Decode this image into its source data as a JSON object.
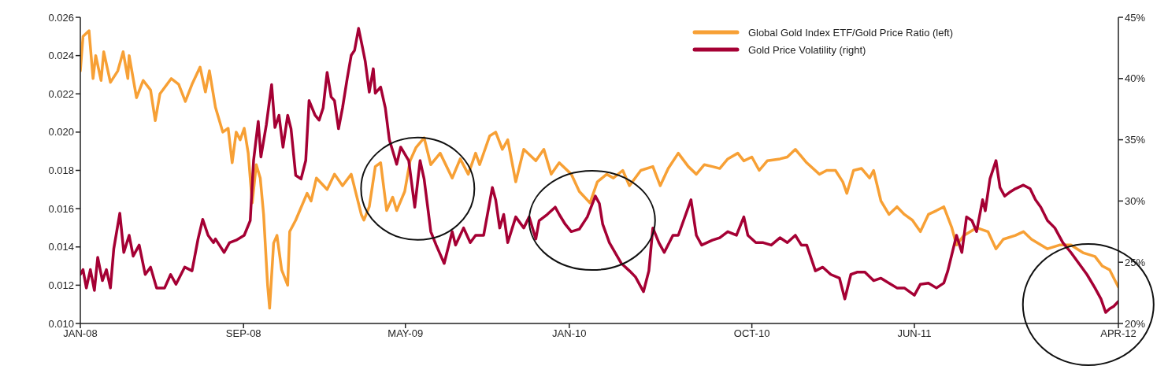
{
  "chart_data": {
    "type": "line",
    "xlim": [
      "2008-01-01",
      "2012-04-01"
    ],
    "xticks": [
      {
        "value": "2008-01-01",
        "label": "JAN-08"
      },
      {
        "value": "2008-09-01",
        "label": "SEP-08"
      },
      {
        "value": "2009-05-01",
        "label": "MAY-09"
      },
      {
        "value": "2010-01-01",
        "label": "JAN-10"
      },
      {
        "value": "2010-10-01",
        "label": "OCT-10"
      },
      {
        "value": "2011-06-01",
        "label": "JUN-11"
      },
      {
        "value": "2012-04-01",
        "label": "APR-12"
      }
    ],
    "ylim": [
      0.01,
      0.026
    ],
    "yticks": [
      {
        "value": 0.01,
        "label": "0.010"
      },
      {
        "value": 0.012,
        "label": "0.012"
      },
      {
        "value": 0.014,
        "label": "0.014"
      },
      {
        "value": 0.016,
        "label": "0.016"
      },
      {
        "value": 0.018,
        "label": "0.018"
      },
      {
        "value": 0.02,
        "label": "0.020"
      },
      {
        "value": 0.022,
        "label": "0.022"
      },
      {
        "value": 0.024,
        "label": "0.024"
      },
      {
        "value": 0.026,
        "label": "0.026"
      }
    ],
    "y2lim": [
      20,
      45
    ],
    "y2ticks": [
      {
        "value": 20,
        "label": "20%"
      },
      {
        "value": 25,
        "label": "25%"
      },
      {
        "value": 30,
        "label": "30%"
      },
      {
        "value": 35,
        "label": "35%"
      },
      {
        "value": 40,
        "label": "40%"
      },
      {
        "value": 45,
        "label": "45%"
      }
    ],
    "legend": "top right",
    "marker": "none",
    "line_style": "solid",
    "series": [
      {
        "name": "Global Gold Index ETF/Gold Price Ratio (left)",
        "color": "#f7a035",
        "x": [
          "2008-01-01",
          "2008-01-05",
          "2008-01-14",
          "2008-01-20",
          "2008-01-24",
          "2008-02-01",
          "2008-02-05",
          "2008-02-15",
          "2008-02-26",
          "2008-03-05",
          "2008-03-12",
          "2008-03-14",
          "2008-03-25",
          "2008-04-04",
          "2008-04-15",
          "2008-04-22",
          "2008-04-29",
          "2008-05-16",
          "2008-05-27",
          "2008-06-06",
          "2008-06-16",
          "2008-06-28",
          "2008-07-06",
          "2008-07-12",
          "2008-07-21",
          "2008-08-01",
          "2008-08-09",
          "2008-08-15",
          "2008-08-21",
          "2008-08-27",
          "2008-09-02",
          "2008-09-08",
          "2008-09-14",
          "2008-09-20",
          "2008-09-26",
          "2008-10-01",
          "2008-10-07",
          "2008-10-10",
          "2008-10-16",
          "2008-10-21",
          "2008-10-28",
          "2008-11-06",
          "2008-11-09",
          "2008-11-18",
          "2008-12-05",
          "2008-12-11",
          "2008-12-19",
          "2009-01-04",
          "2009-01-15",
          "2009-01-27",
          "2009-02-09",
          "2009-02-24",
          "2009-02-28",
          "2009-03-08",
          "2009-03-17",
          "2009-03-25",
          "2009-04-03",
          "2009-04-12",
          "2009-04-18",
          "2009-04-30",
          "2009-05-08",
          "2009-05-17",
          "2009-05-29",
          "2009-06-08",
          "2009-06-22",
          "2009-07-10",
          "2009-07-22",
          "2009-08-03",
          "2009-08-14",
          "2009-08-20",
          "2009-09-04",
          "2009-09-13",
          "2009-09-23",
          "2009-10-01",
          "2009-10-13",
          "2009-10-25",
          "2009-11-12",
          "2009-11-24",
          "2009-12-05",
          "2009-12-17",
          "2010-01-04",
          "2010-01-16",
          "2010-02-01",
          "2010-02-12",
          "2010-02-26",
          "2010-03-08",
          "2010-03-22",
          "2010-04-01",
          "2010-04-18",
          "2010-05-06",
          "2010-05-17",
          "2010-05-29",
          "2010-06-13",
          "2010-06-28",
          "2010-07-10",
          "2010-07-22",
          "2010-08-03",
          "2010-08-14",
          "2010-08-26",
          "2010-09-10",
          "2010-09-19",
          "2010-10-01",
          "2010-10-12",
          "2010-10-24",
          "2010-11-12",
          "2010-11-23",
          "2010-12-05",
          "2010-12-22",
          "2011-01-10",
          "2011-01-21",
          "2011-02-03",
          "2011-02-14",
          "2011-02-20",
          "2011-03-02",
          "2011-03-14",
          "2011-03-26",
          "2011-04-01",
          "2011-04-12",
          "2011-04-24",
          "2011-05-06",
          "2011-05-17",
          "2011-05-29",
          "2011-06-10",
          "2011-06-22",
          "2011-07-04",
          "2011-07-15",
          "2011-07-27",
          "2011-08-03",
          "2011-08-14",
          "2011-09-02",
          "2011-09-19",
          "2011-10-01",
          "2011-10-12",
          "2011-10-30",
          "2011-11-11",
          "2011-11-23",
          "2011-12-17",
          "2012-01-04",
          "2012-01-21",
          "2012-02-08",
          "2012-02-26",
          "2012-03-08",
          "2012-03-19",
          "2012-04-01"
        ],
        "values": [
          0.0232,
          0.025,
          0.0253,
          0.0228,
          0.024,
          0.0227,
          0.0242,
          0.0226,
          0.0232,
          0.0242,
          0.0228,
          0.024,
          0.0218,
          0.0227,
          0.0222,
          0.0206,
          0.022,
          0.0228,
          0.0225,
          0.0216,
          0.0225,
          0.0234,
          0.0221,
          0.0232,
          0.0213,
          0.02,
          0.0202,
          0.0184,
          0.02,
          0.0196,
          0.0202,
          0.0189,
          0.0163,
          0.0183,
          0.0176,
          0.0157,
          0.012,
          0.0108,
          0.0142,
          0.0146,
          0.0128,
          0.012,
          0.0148,
          0.0154,
          0.0168,
          0.0164,
          0.0176,
          0.017,
          0.0178,
          0.0172,
          0.0178,
          0.0157,
          0.0154,
          0.0161,
          0.0182,
          0.0184,
          0.0159,
          0.0166,
          0.0159,
          0.0169,
          0.0185,
          0.0192,
          0.0197,
          0.0183,
          0.0189,
          0.0176,
          0.0186,
          0.0178,
          0.0189,
          0.0183,
          0.0198,
          0.02,
          0.0191,
          0.0196,
          0.0174,
          0.0191,
          0.0185,
          0.0191,
          0.0178,
          0.0184,
          0.0178,
          0.0169,
          0.0163,
          0.0174,
          0.0178,
          0.0176,
          0.018,
          0.0172,
          0.018,
          0.0182,
          0.0172,
          0.0181,
          0.0189,
          0.0182,
          0.0178,
          0.0183,
          0.0182,
          0.0181,
          0.0186,
          0.0189,
          0.0185,
          0.0187,
          0.018,
          0.0185,
          0.0186,
          0.0187,
          0.0191,
          0.0184,
          0.0178,
          0.018,
          0.018,
          0.0174,
          0.0168,
          0.018,
          0.0181,
          0.0176,
          0.018,
          0.0164,
          0.0157,
          0.0161,
          0.0157,
          0.0154,
          0.0148,
          0.0157,
          0.0159,
          0.0161,
          0.015,
          0.0141,
          0.0146,
          0.015,
          0.0148,
          0.0139,
          0.0144,
          0.0146,
          0.0148,
          0.0144,
          0.0139,
          0.0141,
          0.0141,
          0.0137,
          0.0135,
          0.013,
          0.0128,
          0.0119
        ]
      },
      {
        "name": "Gold Price Volatility (right)",
        "color": "#a50034",
        "axis": "y2",
        "x": [
          "2008-01-01",
          "2008-01-05",
          "2008-01-10",
          "2008-01-16",
          "2008-01-22",
          "2008-01-27",
          "2008-02-03",
          "2008-02-09",
          "2008-02-15",
          "2008-02-20",
          "2008-02-29",
          "2008-03-06",
          "2008-03-14",
          "2008-03-20",
          "2008-03-29",
          "2008-04-07",
          "2008-04-15",
          "2008-04-24",
          "2008-05-06",
          "2008-05-15",
          "2008-05-23",
          "2008-06-05",
          "2008-06-16",
          "2008-06-25",
          "2008-07-02",
          "2008-07-10",
          "2008-07-18",
          "2008-07-21",
          "2008-08-03",
          "2008-08-11",
          "2008-08-21",
          "2008-09-02",
          "2008-09-11",
          "2008-09-16",
          "2008-09-23",
          "2008-09-27",
          "2008-10-05",
          "2008-10-13",
          "2008-10-18",
          "2008-10-24",
          "2008-10-30",
          "2008-11-06",
          "2008-11-11",
          "2008-11-18",
          "2008-11-26",
          "2008-12-03",
          "2008-12-08",
          "2008-12-17",
          "2008-12-23",
          "2008-12-29",
          "2009-01-04",
          "2009-01-10",
          "2009-01-15",
          "2009-01-21",
          "2009-01-27",
          "2009-02-03",
          "2009-02-09",
          "2009-02-14",
          "2009-02-20",
          "2009-02-26",
          "2009-03-02",
          "2009-03-08",
          "2009-03-14",
          "2009-03-17",
          "2009-03-25",
          "2009-04-01",
          "2009-04-07",
          "2009-04-12",
          "2009-04-18",
          "2009-04-24",
          "2009-05-06",
          "2009-05-15",
          "2009-05-23",
          "2009-05-29",
          "2009-06-08",
          "2009-06-16",
          "2009-06-28",
          "2009-07-10",
          "2009-07-15",
          "2009-07-27",
          "2009-08-06",
          "2009-08-14",
          "2009-08-26",
          "2009-09-08",
          "2009-09-13",
          "2009-09-19",
          "2009-09-25",
          "2009-10-01",
          "2009-10-13",
          "2009-10-25",
          "2009-11-02",
          "2009-11-12",
          "2009-11-17",
          "2009-11-29",
          "2009-12-11",
          "2009-12-17",
          "2009-12-26",
          "2010-01-04",
          "2010-01-16",
          "2010-01-28",
          "2010-02-09",
          "2010-02-15",
          "2010-02-20",
          "2010-03-02",
          "2010-03-20",
          "2010-04-01",
          "2010-04-10",
          "2010-04-22",
          "2010-04-30",
          "2010-05-06",
          "2010-05-15",
          "2010-05-23",
          "2010-06-05",
          "2010-06-13",
          "2010-07-02",
          "2010-07-10",
          "2010-07-18",
          "2010-08-03",
          "2010-08-14",
          "2010-08-26",
          "2010-09-08",
          "2010-09-19",
          "2010-09-25",
          "2010-10-07",
          "2010-10-18",
          "2010-10-30",
          "2010-11-12",
          "2010-11-23",
          "2010-12-05",
          "2010-12-14",
          "2010-12-22",
          "2011-01-04",
          "2011-01-15",
          "2011-01-27",
          "2011-02-09",
          "2011-02-17",
          "2011-02-26",
          "2011-03-08",
          "2011-03-19",
          "2011-04-01",
          "2011-04-12",
          "2011-04-24",
          "2011-05-06",
          "2011-05-17",
          "2011-06-01",
          "2011-06-10",
          "2011-06-22",
          "2011-07-04",
          "2011-07-15",
          "2011-07-21",
          "2011-08-03",
          "2011-08-11",
          "2011-08-18",
          "2011-08-26",
          "2011-09-02",
          "2011-09-11",
          "2011-09-15",
          "2011-09-22",
          "2011-10-01",
          "2011-10-07",
          "2011-10-14",
          "2011-10-21",
          "2011-10-30",
          "2011-11-11",
          "2011-11-21",
          "2011-11-29",
          "2011-12-07",
          "2011-12-17",
          "2011-12-28",
          "2012-01-09",
          "2012-01-21",
          "2012-02-02",
          "2012-02-14",
          "2012-02-26",
          "2012-03-06",
          "2012-03-13",
          "2012-03-19",
          "2012-03-25",
          "2012-04-01"
        ],
        "values": [
          24.0,
          24.4,
          22.9,
          24.4,
          22.7,
          25.4,
          23.5,
          24.4,
          22.9,
          26.1,
          29.0,
          25.8,
          27.2,
          25.5,
          26.4,
          24.0,
          24.6,
          22.9,
          22.9,
          24.0,
          23.2,
          24.6,
          24.3,
          26.9,
          28.5,
          27.2,
          26.6,
          26.9,
          25.8,
          26.6,
          26.8,
          27.2,
          28.4,
          33.3,
          36.5,
          33.6,
          36.2,
          39.5,
          36.0,
          37.0,
          34.4,
          37.0,
          35.9,
          32.1,
          31.8,
          33.3,
          38.2,
          37.0,
          36.6,
          37.6,
          40.5,
          38.5,
          38.2,
          35.9,
          37.6,
          40.0,
          41.9,
          42.3,
          44.1,
          42.5,
          41.4,
          38.9,
          40.8,
          38.8,
          39.3,
          37.6,
          35.0,
          34.1,
          33.0,
          34.4,
          33.3,
          29.5,
          33.3,
          31.8,
          27.5,
          26.4,
          24.9,
          27.5,
          26.4,
          27.8,
          26.6,
          27.2,
          27.2,
          31.1,
          30.1,
          27.8,
          28.9,
          26.6,
          28.7,
          27.8,
          28.7,
          26.9,
          28.4,
          28.9,
          29.5,
          28.9,
          28.1,
          27.5,
          27.7,
          28.7,
          30.4,
          29.8,
          28.1,
          26.6,
          24.9,
          24.3,
          23.8,
          22.6,
          24.3,
          27.8,
          26.6,
          25.8,
          27.2,
          27.2,
          30.1,
          27.2,
          26.4,
          26.8,
          27.0,
          27.5,
          27.2,
          28.7,
          27.2,
          26.6,
          26.6,
          26.4,
          27.0,
          26.6,
          27.2,
          26.4,
          26.4,
          24.3,
          24.6,
          24.0,
          23.7,
          22.0,
          24.0,
          24.2,
          24.2,
          23.5,
          23.7,
          23.3,
          22.9,
          22.9,
          22.3,
          23.2,
          23.3,
          22.9,
          23.3,
          24.3,
          27.2,
          25.8,
          28.7,
          28.4,
          27.5,
          30.1,
          29.2,
          31.8,
          33.3,
          31.1,
          30.4,
          30.7,
          31.0,
          31.3,
          31.0,
          30.1,
          29.5,
          28.4,
          27.8,
          26.6,
          25.8,
          24.9,
          24.0,
          22.9,
          22.0,
          20.9,
          21.2,
          21.4,
          21.8
        ]
      }
    ]
  }
}
